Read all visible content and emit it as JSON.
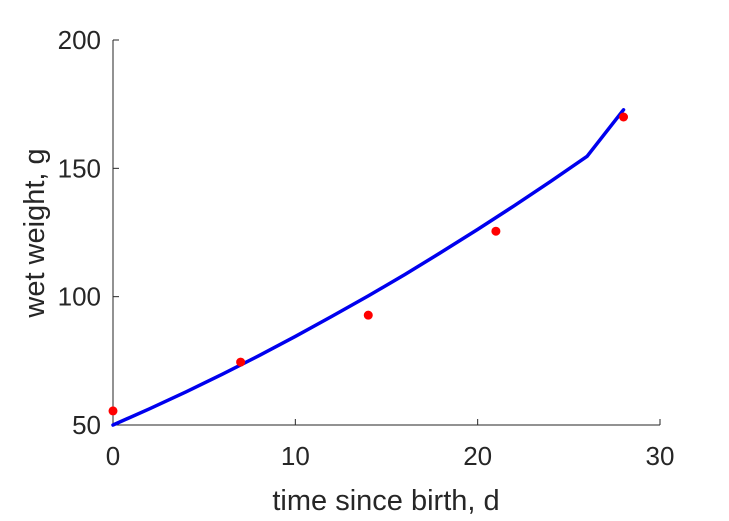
{
  "chart_data": {
    "type": "line",
    "title": "",
    "xlabel": "time since birth, d",
    "ylabel": "wet weight, g",
    "xlim": [
      0,
      30
    ],
    "ylim": [
      50,
      200
    ],
    "xticks": [
      0,
      10,
      20,
      30
    ],
    "yticks": [
      50,
      100,
      150,
      200
    ],
    "xtick_labels": [
      "0",
      "10",
      "20",
      "30"
    ],
    "ytick_labels": [
      "50",
      "100",
      "150",
      "200"
    ],
    "grid": false,
    "legend": "none",
    "series": [
      {
        "kind": "line",
        "color": "#0000ee",
        "x": [
          0,
          2,
          4,
          6,
          8,
          10,
          12,
          14,
          16,
          18,
          20,
          22,
          24,
          26,
          28
        ],
        "y": [
          50,
          56.3,
          62.9,
          69.8,
          77.0,
          84.5,
          92.3,
          100.3,
          108.6,
          117.3,
          126.2,
          135.4,
          144.9,
          154.7,
          172.8
        ]
      },
      {
        "kind": "scatter",
        "color": "#ff0000",
        "x": [
          0,
          7,
          14,
          21,
          28
        ],
        "y": [
          55.5,
          74.5,
          92.8,
          125.5,
          170
        ]
      }
    ]
  }
}
